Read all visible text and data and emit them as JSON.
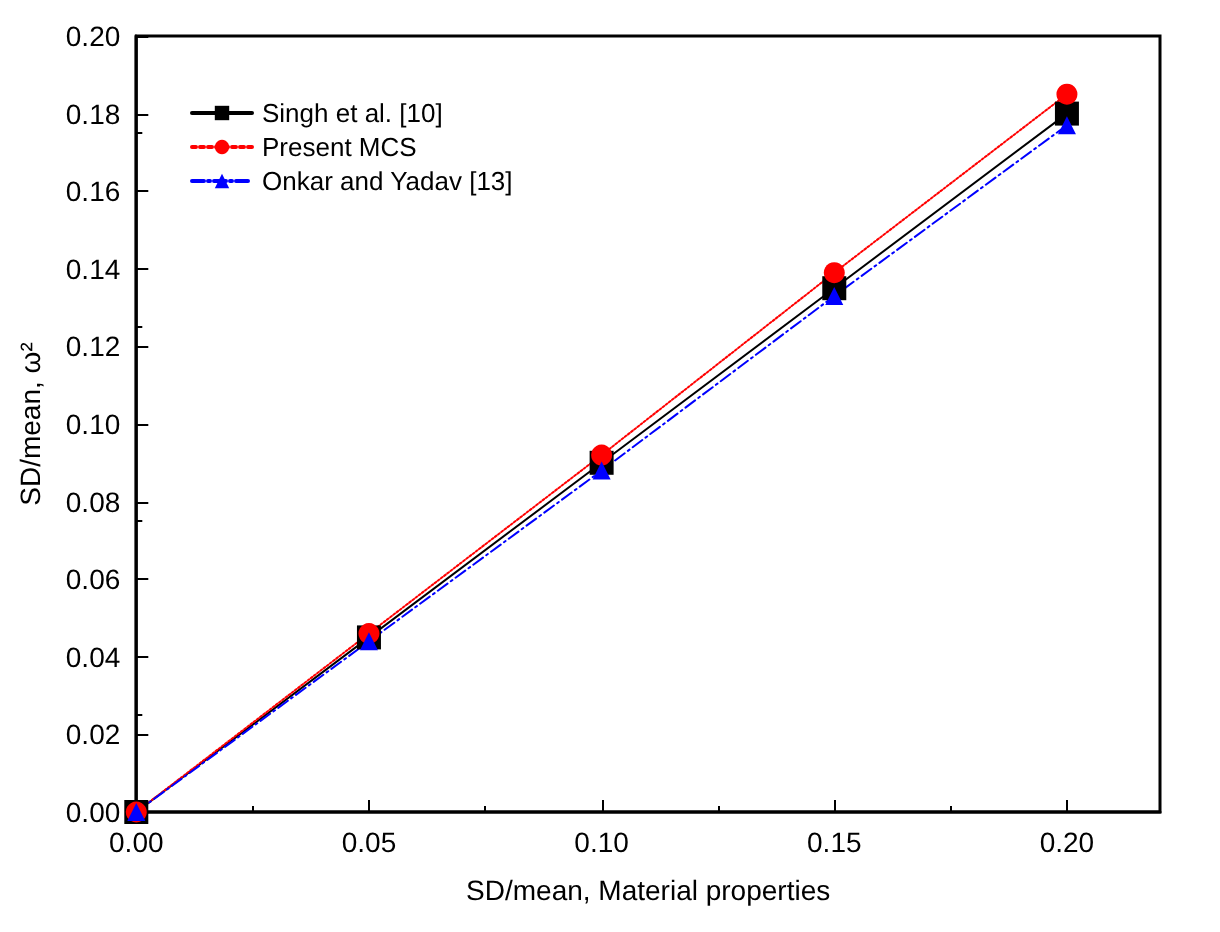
{
  "chart_data": {
    "type": "line",
    "xlabel": "SD/mean, Material properties",
    "ylabel": "SD/mean, ω²",
    "x": [
      0,
      0.05,
      0.1,
      0.15,
      0.2
    ],
    "series": [
      {
        "name": "Singh et al. [10]",
        "color": "#000000",
        "marker": "square",
        "line_style": "solid",
        "values": [
          0,
          0.045,
          0.09,
          0.135,
          0.18
        ]
      },
      {
        "name": "Present MCS",
        "color": "#ff0000",
        "marker": "circle",
        "line_style": "dotted",
        "values": [
          0,
          0.046,
          0.092,
          0.139,
          0.185
        ]
      },
      {
        "name": "Onkar and Yadav [13]",
        "color": "#0000ff",
        "marker": "triangle",
        "line_style": "dashed",
        "values": [
          0,
          0.044,
          0.088,
          0.133,
          0.177
        ]
      }
    ],
    "xlim": [
      0,
      0.22
    ],
    "xticks": [
      {
        "value": 0,
        "label": "0.00"
      },
      0.05,
      {
        "value": 0.1,
        "label": "0.10"
      },
      0.15,
      {
        "value": 0.2,
        "label": "0.20"
      }
    ],
    "ylim": [
      0,
      0.2
    ],
    "yticks": [
      {
        "value": 0,
        "label": "0.00"
      },
      0.02,
      0.04,
      0.06,
      0.08,
      {
        "value": 0.1,
        "label": "0.10"
      },
      0.12,
      0.14,
      0.16,
      0.18,
      {
        "value": 0.2,
        "label": "0.20"
      }
    ],
    "grid": false,
    "legend": "top left"
  }
}
